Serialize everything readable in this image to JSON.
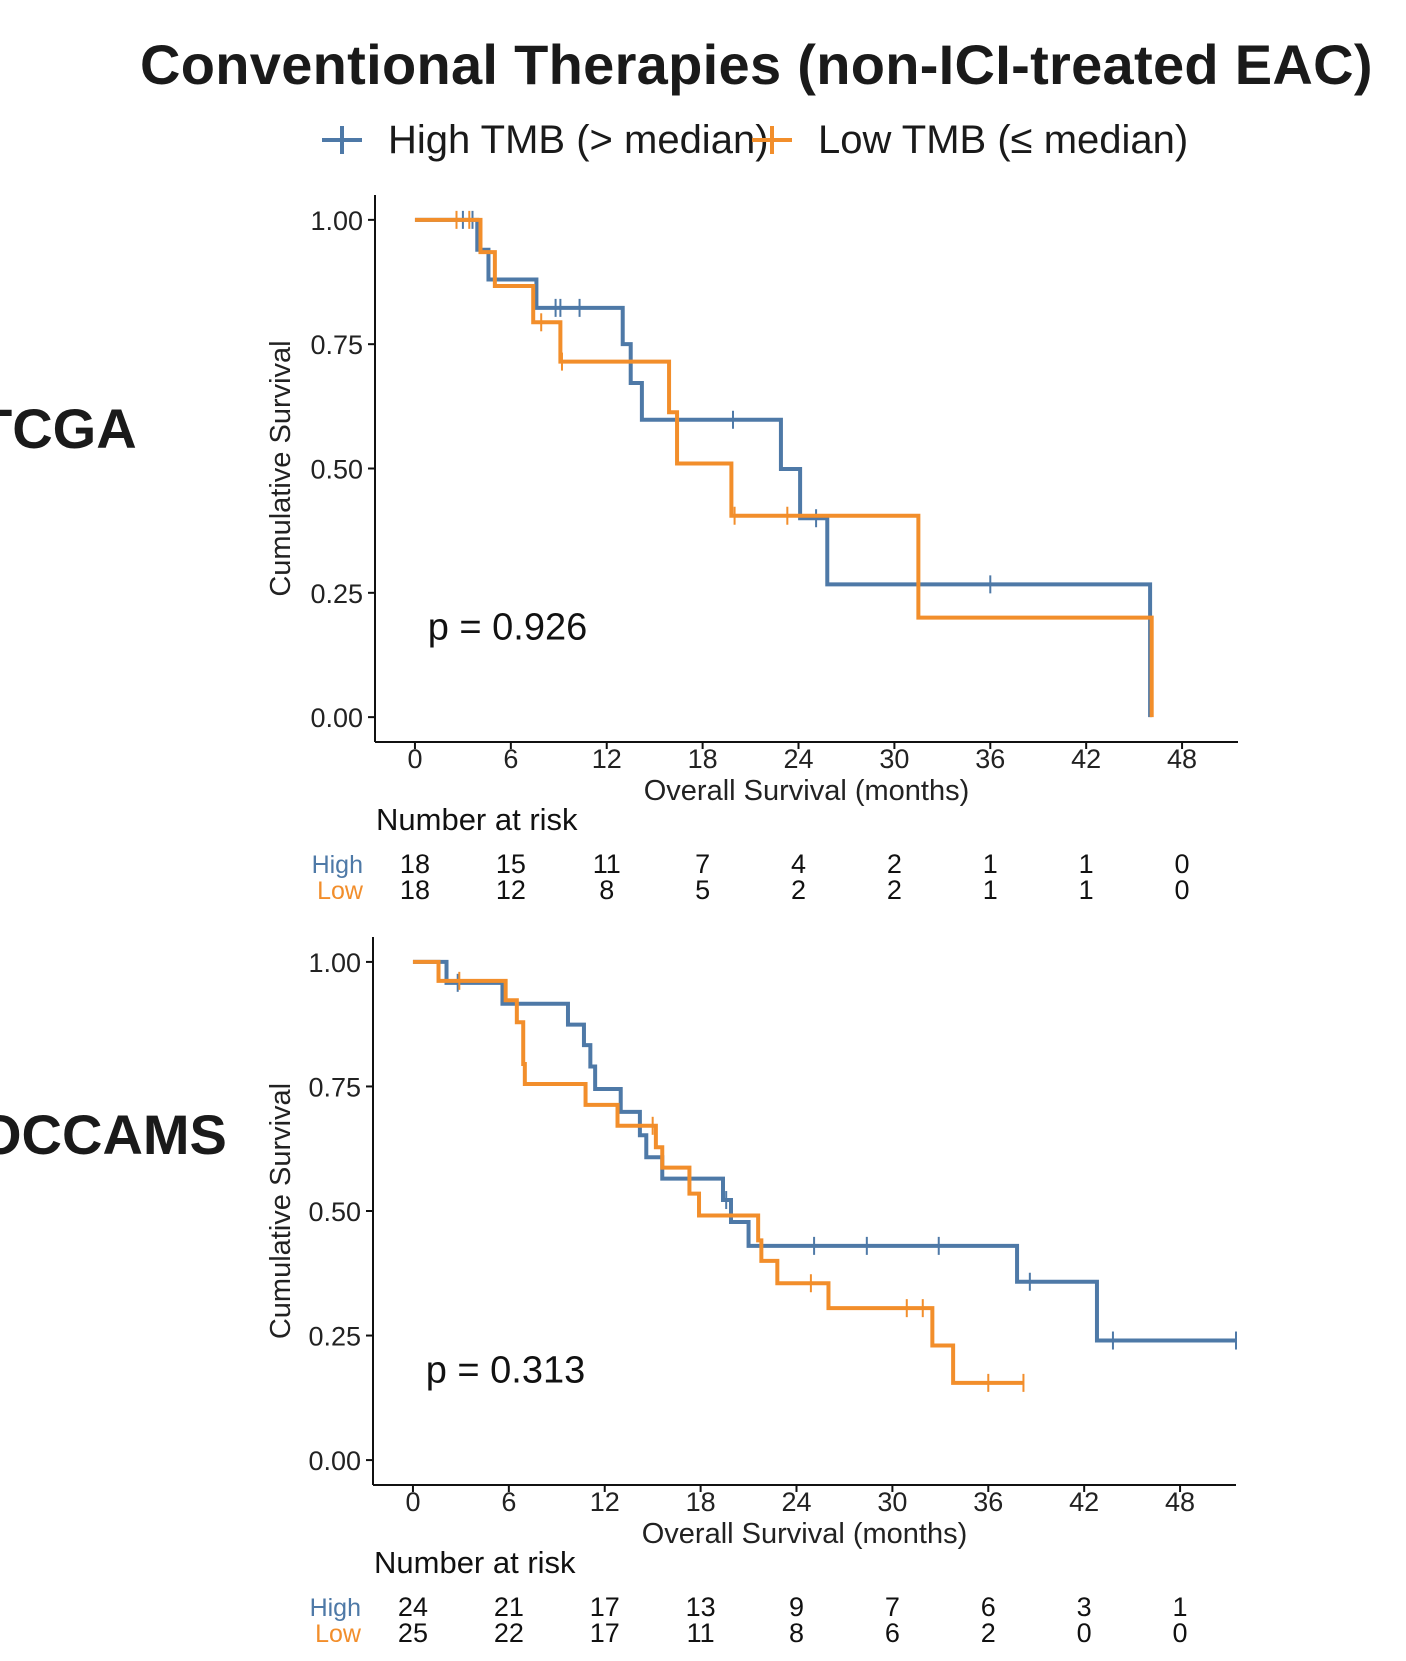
{
  "title": "Conventional Therapies (non-ICI-treated EAC)",
  "legend": {
    "items": [
      {
        "label": "High TMB (> median)",
        "color": "#4e79a7"
      },
      {
        "label": "Low TMB (≤ median)",
        "color": "#f28e2b"
      }
    ]
  },
  "chart_data": [
    {
      "type": "line",
      "panel_label": "TCGA",
      "title": "",
      "xlabel": "Overall Survival (months)",
      "ylabel": "Cumulative Survival",
      "xlim": [
        -2.5,
        51.5
      ],
      "ylim": [
        -0.05,
        1.05
      ],
      "xticks": [
        0,
        6,
        12,
        18,
        24,
        30,
        36,
        42,
        48
      ],
      "xtick_labels": [
        "0",
        "6",
        "12",
        "18",
        "24",
        "30",
        "36",
        "42",
        "48"
      ],
      "yticks": [
        0,
        0.25,
        0.5,
        0.75,
        1
      ],
      "ytick_labels": [
        "0.00",
        "0.25",
        "0.50",
        "0.75",
        "1.00"
      ],
      "annotation": "p = 0.926",
      "series": [
        {
          "name": "High TMB (> median)",
          "color": "#4e79a7",
          "steps": [
            [
              0,
              1.0
            ],
            [
              3.9,
              0.94
            ],
            [
              4.6,
              0.88
            ],
            [
              7.6,
              0.823
            ],
            [
              13.0,
              0.75
            ],
            [
              13.5,
              0.672
            ],
            [
              14.2,
              0.598
            ],
            [
              22.9,
              0.499
            ],
            [
              24.1,
              0.4
            ],
            [
              25.8,
              0.267
            ],
            [
              46.0,
              0.0
            ]
          ],
          "censor_times": [
            3.0,
            3.6,
            8.8,
            9.1,
            10.3,
            19.9,
            25.1,
            36.0
          ]
        },
        {
          "name": "Low TMB (≤ median)",
          "color": "#f28e2b",
          "steps": [
            [
              0,
              1.0
            ],
            [
              4.1,
              0.935
            ],
            [
              5.0,
              0.867
            ],
            [
              7.4,
              0.794
            ],
            [
              9.1,
              0.715
            ],
            [
              15.9,
              0.613
            ],
            [
              16.4,
              0.51
            ],
            [
              19.8,
              0.405
            ],
            [
              31.5,
              0.2
            ],
            [
              46.1,
              0.0
            ]
          ],
          "censor_times": [
            2.6,
            3.4,
            7.9,
            9.2,
            20.0,
            23.3
          ]
        }
      ],
      "risk_table": {
        "title": "Number at risk",
        "rows": [
          {
            "label": "High",
            "color": "#4e79a7",
            "counts": [
              "18",
              "15",
              "11",
              "7",
              "4",
              "2",
              "1",
              "1",
              "0"
            ]
          },
          {
            "label": "Low",
            "color": "#f28e2b",
            "counts": [
              "18",
              "12",
              "8",
              "5",
              "2",
              "2",
              "1",
              "1",
              "0"
            ]
          }
        ]
      }
    },
    {
      "type": "line",
      "panel_label": "OCCAMS",
      "title": "",
      "xlabel": "Overall Survival (months)",
      "ylabel": "Cumulative Survival",
      "xlim": [
        -2.5,
        51.5
      ],
      "ylim": [
        -0.05,
        1.05
      ],
      "xticks": [
        0,
        6,
        12,
        18,
        24,
        30,
        36,
        42,
        48
      ],
      "xtick_labels": [
        "0",
        "6",
        "12",
        "18",
        "24",
        "30",
        "36",
        "42",
        "48"
      ],
      "yticks": [
        0,
        0.25,
        0.5,
        0.75,
        1
      ],
      "ytick_labels": [
        "0.00",
        "0.25",
        "0.50",
        "0.75",
        "1.00"
      ],
      "annotation": "p = 0.313",
      "series": [
        {
          "name": "High TMB (> median)",
          "color": "#4e79a7",
          "steps": [
            [
              0,
              1.0
            ],
            [
              2.1,
              0.958
            ],
            [
              5.6,
              0.916
            ],
            [
              9.7,
              0.874
            ],
            [
              10.7,
              0.833
            ],
            [
              11.1,
              0.79
            ],
            [
              11.4,
              0.745
            ],
            [
              13.0,
              0.699
            ],
            [
              14.2,
              0.652
            ],
            [
              14.6,
              0.608
            ],
            [
              15.6,
              0.565
            ],
            [
              19.4,
              0.522
            ],
            [
              19.9,
              0.478
            ],
            [
              21.0,
              0.43
            ],
            [
              37.8,
              0.358
            ],
            [
              42.8,
              0.24
            ]
          ],
          "censor_times": [
            2.8,
            19.6,
            25.1,
            28.4,
            32.9,
            38.6,
            43.8,
            51.5
          ]
        },
        {
          "name": "Low TMB (≤ median)",
          "color": "#f28e2b",
          "steps": [
            [
              0,
              1.0
            ],
            [
              1.6,
              0.962
            ],
            [
              5.8,
              0.923
            ],
            [
              6.5,
              0.879
            ],
            [
              6.9,
              0.795
            ],
            [
              7.0,
              0.755
            ],
            [
              10.8,
              0.713
            ],
            [
              12.8,
              0.671
            ],
            [
              15.2,
              0.628
            ],
            [
              15.6,
              0.587
            ],
            [
              17.3,
              0.535
            ],
            [
              17.9,
              0.491
            ],
            [
              21.6,
              0.441
            ],
            [
              21.8,
              0.4
            ],
            [
              22.8,
              0.355
            ],
            [
              26.0,
              0.305
            ],
            [
              32.5,
              0.23
            ],
            [
              33.8,
              0.155
            ],
            [
              38.2,
              0.155
            ]
          ],
          "censor_times": [
            2.9,
            15.0,
            24.9,
            30.9,
            31.9,
            36.0,
            38.2
          ]
        }
      ],
      "risk_table": {
        "title": "Number at risk",
        "rows": [
          {
            "label": "High",
            "color": "#4e79a7",
            "counts": [
              "24",
              "21",
              "17",
              "13",
              "9",
              "7",
              "6",
              "3",
              "1"
            ]
          },
          {
            "label": "Low",
            "color": "#f28e2b",
            "counts": [
              "25",
              "22",
              "17",
              "11",
              "8",
              "6",
              "2",
              "0",
              "0"
            ]
          }
        ]
      }
    }
  ]
}
